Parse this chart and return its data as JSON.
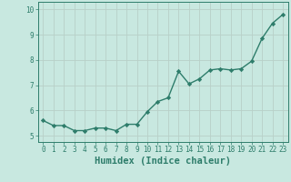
{
  "x": [
    0,
    1,
    2,
    3,
    4,
    5,
    6,
    7,
    8,
    9,
    10,
    11,
    12,
    13,
    14,
    15,
    16,
    17,
    18,
    19,
    20,
    21,
    22,
    23
  ],
  "y": [
    5.6,
    5.4,
    5.4,
    5.2,
    5.2,
    5.3,
    5.3,
    5.2,
    5.45,
    5.45,
    5.95,
    6.35,
    6.5,
    7.55,
    7.05,
    7.25,
    7.6,
    7.65,
    7.6,
    7.65,
    7.95,
    8.85,
    9.45,
    9.8
  ],
  "line_color": "#2e7d6b",
  "marker": "D",
  "marker_size": 2.2,
  "bg_color": "#c8e8e0",
  "grid_color": "#b8d0c8",
  "axis_color": "#2e7d6b",
  "xlabel": "Humidex (Indice chaleur)",
  "ylim": [
    4.75,
    10.3
  ],
  "xlim": [
    -0.5,
    23.5
  ],
  "yticks": [
    5,
    6,
    7,
    8,
    9,
    10
  ],
  "xticks": [
    0,
    1,
    2,
    3,
    4,
    5,
    6,
    7,
    8,
    9,
    10,
    11,
    12,
    13,
    14,
    15,
    16,
    17,
    18,
    19,
    20,
    21,
    22,
    23
  ],
  "tick_fontsize": 5.5,
  "xlabel_fontsize": 7.5,
  "line_width": 1.0
}
